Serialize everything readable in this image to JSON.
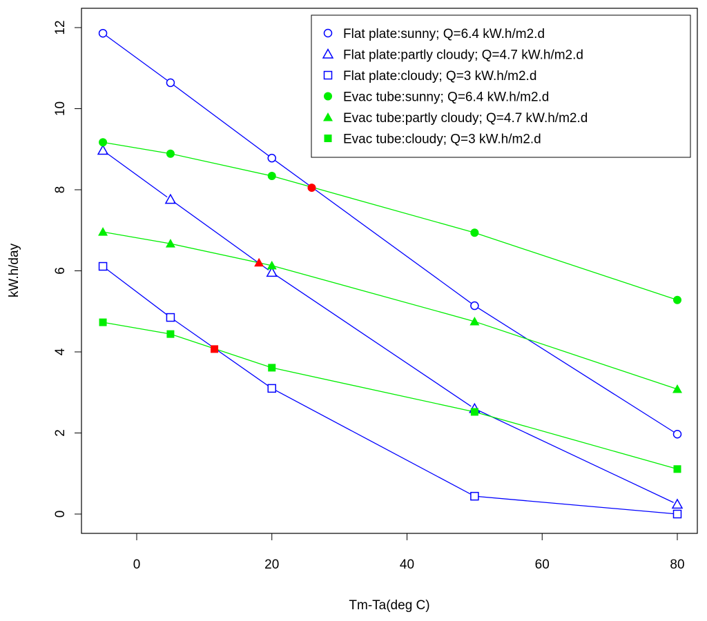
{
  "chart_data": {
    "type": "line",
    "title": "",
    "xlabel": "Tm-Ta(deg C)",
    "ylabel": "kW.h/day",
    "xlim": [
      -7,
      83
    ],
    "ylim": [
      -0.5,
      12.5
    ],
    "xticks": [
      0,
      20,
      40,
      60,
      80
    ],
    "yticks": [
      0,
      2,
      4,
      6,
      8,
      10,
      12
    ],
    "grid": false,
    "legend_position": "top-right",
    "x": [
      -5,
      5,
      20,
      50,
      80
    ],
    "series": [
      {
        "name": "Flat plate:sunny; Q=6.4 kW.h/m2.d",
        "color": "#0000ff",
        "marker": "circle-open",
        "values": [
          11.86,
          10.64,
          8.78,
          5.14,
          1.97
        ]
      },
      {
        "name": "Flat plate:partly cloudy; Q=4.7 kW.h/m2.d",
        "color": "#0000ff",
        "marker": "triangle-open",
        "values": [
          8.97,
          7.76,
          5.96,
          2.6,
          0.24
        ]
      },
      {
        "name": "Flat plate:cloudy; Q=3 kW.h/m2.d",
        "color": "#0000ff",
        "marker": "square-open",
        "values": [
          6.11,
          4.85,
          3.1,
          0.44,
          0.0
        ]
      },
      {
        "name": "Evac tube:sunny; Q=6.4 kW.h/m2.d",
        "color": "#00ee00",
        "marker": "circle-filled",
        "values": [
          9.17,
          8.89,
          8.34,
          6.94,
          5.28
        ]
      },
      {
        "name": "Evac tube:partly cloudy; Q=4.7 kW.h/m2.d",
        "color": "#00ee00",
        "marker": "triangle-filled",
        "values": [
          6.96,
          6.67,
          6.13,
          4.75,
          3.08
        ]
      },
      {
        "name": "Evac tube:cloudy; Q=3 kW.h/m2.d",
        "color": "#00ee00",
        "marker": "square-filled",
        "values": [
          4.73,
          4.44,
          3.61,
          2.52,
          1.11
        ]
      }
    ],
    "intersections": [
      {
        "x": 25.9,
        "y": 8.05,
        "marker": "circle-filled",
        "color": "#ff0000"
      },
      {
        "x": 18.1,
        "y": 6.2,
        "marker": "triangle-filled",
        "color": "#ff0000"
      },
      {
        "x": 11.5,
        "y": 4.07,
        "marker": "square-filled",
        "color": "#ff0000"
      }
    ]
  }
}
